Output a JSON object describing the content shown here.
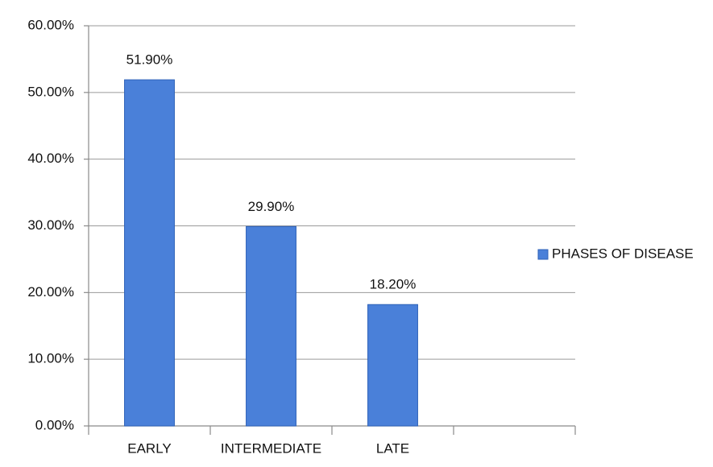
{
  "chart_data": {
    "type": "bar",
    "categories": [
      "EARLY",
      "INTERMEDIATE",
      "LATE",
      null
    ],
    "series": [
      {
        "name": "PHASES OF DISEASE",
        "color": "#4a80d9",
        "values": [
          51.9,
          29.9,
          18.2,
          null
        ],
        "value_labels": [
          "51.90%",
          "29.90%",
          "18.20%",
          null
        ]
      }
    ],
    "ylim": [
      0,
      60
    ],
    "yticks": [
      {
        "value": 0,
        "label": "0.00%"
      },
      {
        "value": 10,
        "label": "10.00%"
      },
      {
        "value": 20,
        "label": "20.00%"
      },
      {
        "value": 30,
        "label": "30.00%"
      },
      {
        "value": 40,
        "label": "40.00%"
      },
      {
        "value": 50,
        "label": "50.00%"
      },
      {
        "value": 60,
        "label": "60.00%"
      }
    ],
    "grid": true,
    "legend": "right"
  }
}
